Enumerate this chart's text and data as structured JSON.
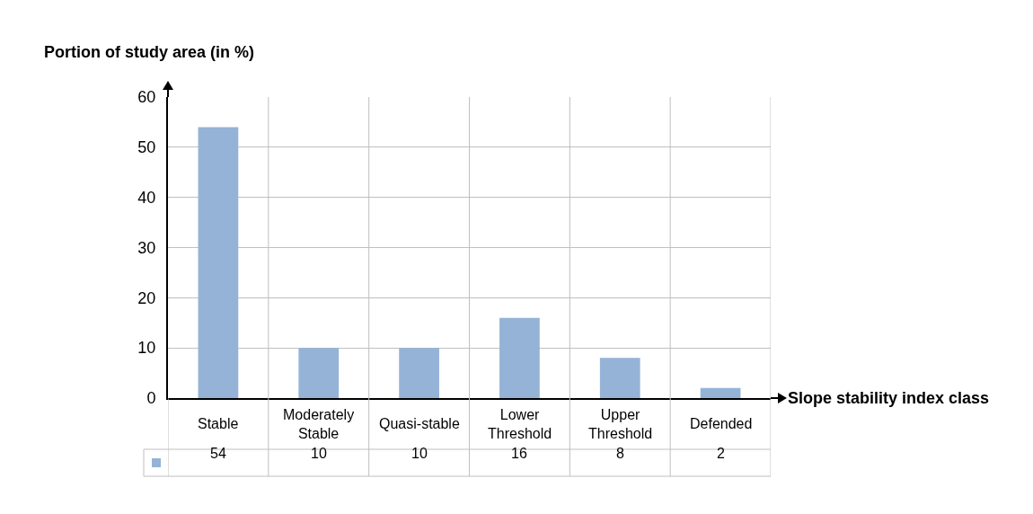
{
  "chart_data": {
    "type": "bar",
    "ylabel": "Portion of study area (in %)",
    "xlabel": "Slope stability index class",
    "categories": [
      "Stable",
      "Moderately Stable",
      "Quasi-stable",
      "Lower Threshold",
      "Upper Threshold",
      "Defended"
    ],
    "values": [
      54,
      10,
      10,
      16,
      8,
      2
    ],
    "color": "#95b3d7",
    "ylim": [
      0,
      60
    ],
    "yticks": [
      0,
      10,
      20,
      30,
      40,
      50,
      60
    ],
    "grid": true,
    "data_labels": true
  }
}
